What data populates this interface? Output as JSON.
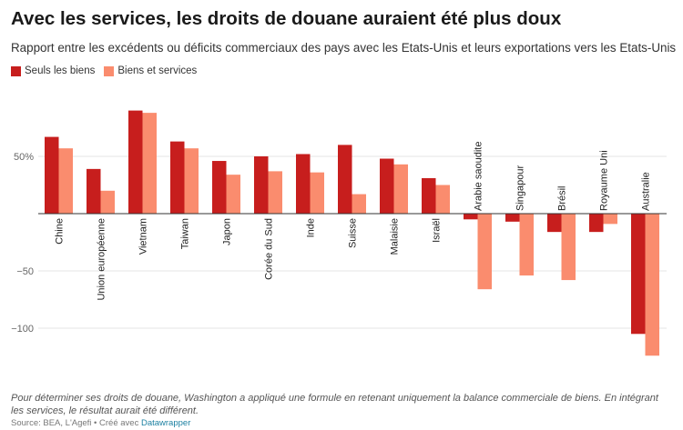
{
  "title": "Avec les services, les droits de douane auraient été plus doux",
  "subtitle": "Rapport entre les excédents ou déficits commerciaux des pays avec les Etats-Unis et leurs exportations vers les Etats-Unis",
  "note": "Pour déterminer ses droits de douane, Washington a appliqué une formule en retenant uniquement la balance commerciale de biens. En intégrant les services, le résultat aurait été différent.",
  "source": {
    "prefix": "Source: BEA, L'Agefi • Créé avec ",
    "tool": "Datawrapper"
  },
  "colors": {
    "goods": "#c71e1d",
    "services": "#fa8c6e"
  },
  "chart_data": {
    "type": "bar",
    "categories": [
      "Chine",
      "Union européenne",
      "Vietnam",
      "Taiwan",
      "Japon",
      "Corée du Sud",
      "Inde",
      "Suisse",
      "Malaisie",
      "Israël",
      "Arabie saoudite",
      "Singapour",
      "Brésil",
      "Royaume Uni",
      "Australie"
    ],
    "series": [
      {
        "name": "Seuls les biens",
        "values": [
          67,
          39,
          90,
          63,
          46,
          50,
          52,
          60,
          48,
          31,
          -5,
          -7,
          -16,
          -16,
          -105
        ]
      },
      {
        "name": "Biens et services",
        "values": [
          57,
          20,
          88,
          57,
          34,
          37,
          36,
          17,
          43,
          25,
          -66,
          -54,
          -58,
          -9,
          -124
        ]
      }
    ],
    "yticks": [
      {
        "value": 50,
        "label": "50%"
      },
      {
        "value": -50,
        "label": "−50"
      },
      {
        "value": -100,
        "label": "−100"
      }
    ],
    "ylim": [
      -128,
      100
    ],
    "grid": true,
    "legend_position": "top-left"
  }
}
